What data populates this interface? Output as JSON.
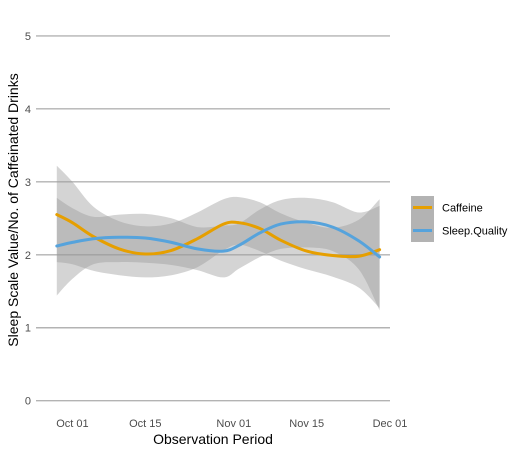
{
  "chart_data": {
    "type": "line",
    "title": "",
    "xlabel": "Observation Period",
    "ylabel": "Sleep Scale Value/No. of Caffeinated Drinks",
    "x_ticks": [
      "Oct 01",
      "Oct 15",
      "Nov 01",
      "Nov 15",
      "Dec 01"
    ],
    "x_tick_dates": [
      "2021-10-01",
      "2021-10-15",
      "2021-11-01",
      "2021-11-15",
      "2021-12-01"
    ],
    "xlim": [
      "2021-09-24",
      "2021-12-01"
    ],
    "y_ticks": [
      "0",
      "1",
      "2",
      "3",
      "4",
      "5"
    ],
    "ylim": [
      -0.1,
      5.3
    ],
    "grid": true,
    "legend_position": "right",
    "series": [
      {
        "name": "Caffeine",
        "color": "#e69f00",
        "x": [
          "2021-09-28",
          "2021-10-01",
          "2021-10-05",
          "2021-10-10",
          "2021-10-15",
          "2021-10-20",
          "2021-10-25",
          "2021-10-30",
          "2021-11-02",
          "2021-11-06",
          "2021-11-10",
          "2021-11-15",
          "2021-11-20",
          "2021-11-25",
          "2021-11-29"
        ],
        "y": [
          2.55,
          2.44,
          2.25,
          2.08,
          2.01,
          2.06,
          2.22,
          2.42,
          2.44,
          2.36,
          2.2,
          2.05,
          1.99,
          1.98,
          2.07
        ],
        "lower": [
          1.9,
          1.87,
          1.78,
          1.72,
          1.69,
          1.72,
          1.83,
          2.06,
          2.14,
          2.05,
          1.92,
          1.8,
          1.7,
          1.55,
          1.27
        ],
        "upper": [
          3.22,
          3.0,
          2.66,
          2.46,
          2.39,
          2.43,
          2.58,
          2.76,
          2.79,
          2.72,
          2.57,
          2.44,
          2.37,
          2.48,
          2.76
        ]
      },
      {
        "name": "Sleep.Quality",
        "color": "#56a3dc",
        "x": [
          "2021-09-28",
          "2021-10-01",
          "2021-10-05",
          "2021-10-10",
          "2021-10-15",
          "2021-10-20",
          "2021-10-25",
          "2021-10-30",
          "2021-11-02",
          "2021-11-06",
          "2021-11-10",
          "2021-11-15",
          "2021-11-20",
          "2021-11-25",
          "2021-11-29"
        ],
        "y": [
          2.12,
          2.17,
          2.22,
          2.24,
          2.23,
          2.17,
          2.08,
          2.05,
          2.13,
          2.3,
          2.42,
          2.45,
          2.38,
          2.19,
          1.97
        ],
        "lower": [
          1.44,
          1.67,
          1.87,
          1.9,
          1.89,
          1.86,
          1.79,
          1.69,
          1.81,
          1.97,
          2.08,
          2.1,
          2.05,
          1.8,
          1.24
        ],
        "upper": [
          2.78,
          2.64,
          2.52,
          2.55,
          2.56,
          2.5,
          2.38,
          2.4,
          2.43,
          2.62,
          2.75,
          2.78,
          2.72,
          2.58,
          2.67
        ]
      }
    ]
  }
}
